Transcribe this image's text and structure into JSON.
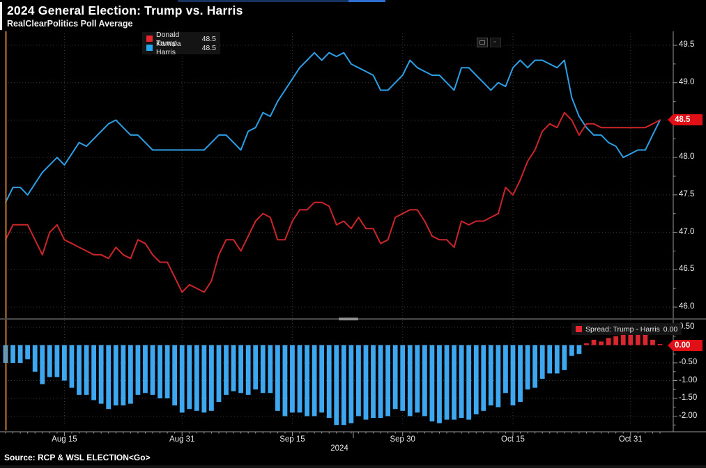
{
  "window": {
    "title": "2024 General Election: Trump vs. Harris",
    "subtitle": "RealClearPolitics Poll Average",
    "source": "Source: RCP & WSL ELECTION<Go>"
  },
  "legend_main": {
    "items": [
      {
        "label": "Donald Trump",
        "value": "48.5",
        "color": "#e8262e"
      },
      {
        "label": "Kamala Harris",
        "value": "48.5",
        "color": "#26a8f0"
      }
    ]
  },
  "legend_spread": {
    "label": "Spread: Trump - Harris",
    "value": "0.00",
    "color": "#e8262e"
  },
  "axis_tags": {
    "main": "48.5",
    "spread": "0.00"
  },
  "toolbar": {
    "icons": [
      "chart-panel-icon",
      "chart-options-icon"
    ]
  },
  "colors": {
    "trump_line": "#cc2529",
    "harris_line": "#2d9fe6",
    "bar_positive": "#d8272e",
    "bar_negative": "#3da8f0",
    "tag_background": "#e01016",
    "left_edge_line": "#c47a2f",
    "axis_line": "#9a9a9a",
    "gridline": "#3a3a3a"
  },
  "chart_data": {
    "type": "line",
    "title": "2024 General Election: Trump vs. Harris",
    "subtitle": "RealClearPolitics Poll Average",
    "grid": "dotted",
    "legend_position": "top-left",
    "x": {
      "dates": [
        "8/7",
        "8/8",
        "8/9",
        "8/10",
        "8/11",
        "8/12",
        "8/13",
        "8/14",
        "8/15",
        "8/16",
        "8/17",
        "8/18",
        "8/19",
        "8/20",
        "8/21",
        "8/22",
        "8/23",
        "8/24",
        "8/25",
        "8/26",
        "8/27",
        "8/28",
        "8/29",
        "8/30",
        "8/31",
        "9/1",
        "9/2",
        "9/3",
        "9/4",
        "9/5",
        "9/6",
        "9/7",
        "9/8",
        "9/9",
        "9/10",
        "9/11",
        "9/12",
        "9/13",
        "9/14",
        "9/15",
        "9/16",
        "9/17",
        "9/18",
        "9/19",
        "9/20",
        "9/21",
        "9/22",
        "9/23",
        "9/24",
        "9/25",
        "9/26",
        "9/27",
        "9/28",
        "9/29",
        "9/30",
        "10/1",
        "10/2",
        "10/3",
        "10/4",
        "10/5",
        "10/6",
        "10/7",
        "10/8",
        "10/9",
        "10/10",
        "10/11",
        "10/12",
        "10/13",
        "10/14",
        "10/15",
        "10/16",
        "10/17",
        "10/18",
        "10/19",
        "10/20",
        "10/21",
        "10/22",
        "10/23",
        "10/24",
        "10/25",
        "10/26",
        "10/27",
        "10/28",
        "10/29",
        "10/30",
        "10/31",
        "11/1",
        "11/2",
        "11/3",
        "11/4"
      ],
      "ticks": [
        {
          "label": "Aug 15",
          "index": 8
        },
        {
          "label": "Aug 31",
          "index": 24
        },
        {
          "label": "Sep 15",
          "index": 39
        },
        {
          "label": "Sep 30",
          "index": 54
        },
        {
          "label": "Oct 15",
          "index": 69
        },
        {
          "label": "Oct 31",
          "index": 85
        }
      ],
      "year_label": "2024"
    },
    "panels": [
      {
        "id": "poll-average",
        "type": "line",
        "ylim": [
          46.0,
          49.5
        ],
        "yticks": [
          {
            "label": "49.5",
            "value": 49.5
          },
          {
            "label": "49.0",
            "value": 49.0
          },
          {
            "label": "48.5",
            "value": 48.5
          },
          {
            "label": "48.0",
            "value": 48.0
          },
          {
            "label": "47.5",
            "value": 47.5
          },
          {
            "label": "47.0",
            "value": 47.0
          },
          {
            "label": "46.5",
            "value": 46.5
          },
          {
            "label": "46.0",
            "value": 46.0
          }
        ],
        "series": [
          {
            "name": "Donald Trump",
            "color": "#cc2529",
            "last_value": 48.5,
            "values": [
              46.9,
              47.1,
              47.1,
              47.1,
              46.9,
              46.7,
              47.0,
              47.1,
              46.9,
              46.85,
              46.8,
              46.75,
              46.7,
              46.7,
              46.65,
              46.8,
              46.7,
              46.65,
              46.9,
              46.85,
              46.7,
              46.6,
              46.6,
              46.4,
              46.2,
              46.3,
              46.25,
              46.2,
              46.35,
              46.7,
              46.9,
              46.9,
              46.75,
              46.95,
              47.15,
              47.25,
              47.2,
              46.9,
              46.9,
              47.15,
              47.3,
              47.3,
              47.4,
              47.4,
              47.35,
              47.1,
              47.15,
              47.05,
              47.2,
              47.05,
              47.05,
              46.85,
              46.9,
              47.2,
              47.25,
              47.3,
              47.3,
              47.15,
              46.95,
              46.9,
              46.9,
              46.8,
              47.15,
              47.1,
              47.15,
              47.15,
              47.2,
              47.25,
              47.6,
              47.5,
              47.7,
              47.95,
              48.1,
              48.35,
              48.45,
              48.4,
              48.6,
              48.5,
              48.3,
              48.45,
              48.45,
              48.4,
              48.4,
              48.4,
              48.4,
              48.4,
              48.4,
              48.4,
              48.45,
              48.5
            ]
          },
          {
            "name": "Kamala Harris",
            "color": "#2d9fe6",
            "last_value": 48.5,
            "values": [
              47.4,
              47.6,
              47.6,
              47.5,
              47.65,
              47.8,
              47.9,
              48.0,
              47.9,
              48.05,
              48.2,
              48.15,
              48.25,
              48.35,
              48.45,
              48.5,
              48.4,
              48.3,
              48.3,
              48.2,
              48.1,
              48.1,
              48.1,
              48.1,
              48.1,
              48.1,
              48.1,
              48.1,
              48.2,
              48.3,
              48.3,
              48.2,
              48.1,
              48.35,
              48.4,
              48.6,
              48.55,
              48.75,
              48.9,
              49.05,
              49.2,
              49.3,
              49.4,
              49.3,
              49.4,
              49.35,
              49.4,
              49.25,
              49.2,
              49.15,
              49.1,
              48.9,
              48.9,
              49.0,
              49.1,
              49.3,
              49.2,
              49.15,
              49.1,
              49.1,
              49.0,
              48.9,
              49.2,
              49.2,
              49.1,
              49.0,
              48.9,
              49.0,
              48.95,
              49.2,
              49.3,
              49.2,
              49.3,
              49.3,
              49.25,
              49.2,
              49.3,
              48.8,
              48.55,
              48.4,
              48.3,
              48.3,
              48.2,
              48.15,
              48.0,
              48.05,
              48.1,
              48.1,
              48.3,
              48.5
            ]
          }
        ]
      },
      {
        "id": "spread",
        "type": "bar",
        "ylim": [
          -2.5,
          0.75
        ],
        "yticks": [
          {
            "label": "0.50",
            "value": 0.5
          },
          {
            "label": "0.00",
            "value": 0.0
          },
          {
            "label": "-0.50",
            "value": -0.5
          },
          {
            "label": "-1.00",
            "value": -1.0
          },
          {
            "label": "-1.50",
            "value": -1.5
          },
          {
            "label": "-2.00",
            "value": -2.0
          }
        ],
        "series": [
          {
            "name": "Spread: Trump - Harris",
            "positive_color": "#d8272e",
            "negative_color": "#3da8f0",
            "last_value": 0.0,
            "values": [
              -0.5,
              -0.5,
              -0.5,
              -0.4,
              -0.75,
              -1.1,
              -0.9,
              -0.9,
              -1.0,
              -1.2,
              -1.4,
              -1.4,
              -1.55,
              -1.65,
              -1.8,
              -1.7,
              -1.7,
              -1.65,
              -1.4,
              -1.35,
              -1.4,
              -1.5,
              -1.5,
              -1.7,
              -1.9,
              -1.8,
              -1.85,
              -1.9,
              -1.85,
              -1.6,
              -1.4,
              -1.3,
              -1.35,
              -1.4,
              -1.25,
              -1.35,
              -1.35,
              -1.85,
              -2.0,
              -1.9,
              -1.9,
              -2.0,
              -2.0,
              -1.9,
              -2.05,
              -2.25,
              -2.25,
              -2.2,
              -2.0,
              -2.1,
              -2.05,
              -2.05,
              -2.0,
              -1.8,
              -1.85,
              -2.0,
              -1.9,
              -2.0,
              -2.15,
              -2.2,
              -2.1,
              -2.1,
              -2.05,
              -2.1,
              -1.95,
              -1.85,
              -1.7,
              -1.75,
              -1.35,
              -1.7,
              -1.6,
              -1.25,
              -1.2,
              -0.95,
              -0.8,
              -0.8,
              -0.7,
              -0.3,
              -0.25,
              0.05,
              0.15,
              0.1,
              0.2,
              0.25,
              0.4,
              0.35,
              0.3,
              0.3,
              0.15,
              0.0
            ]
          }
        ]
      }
    ]
  }
}
